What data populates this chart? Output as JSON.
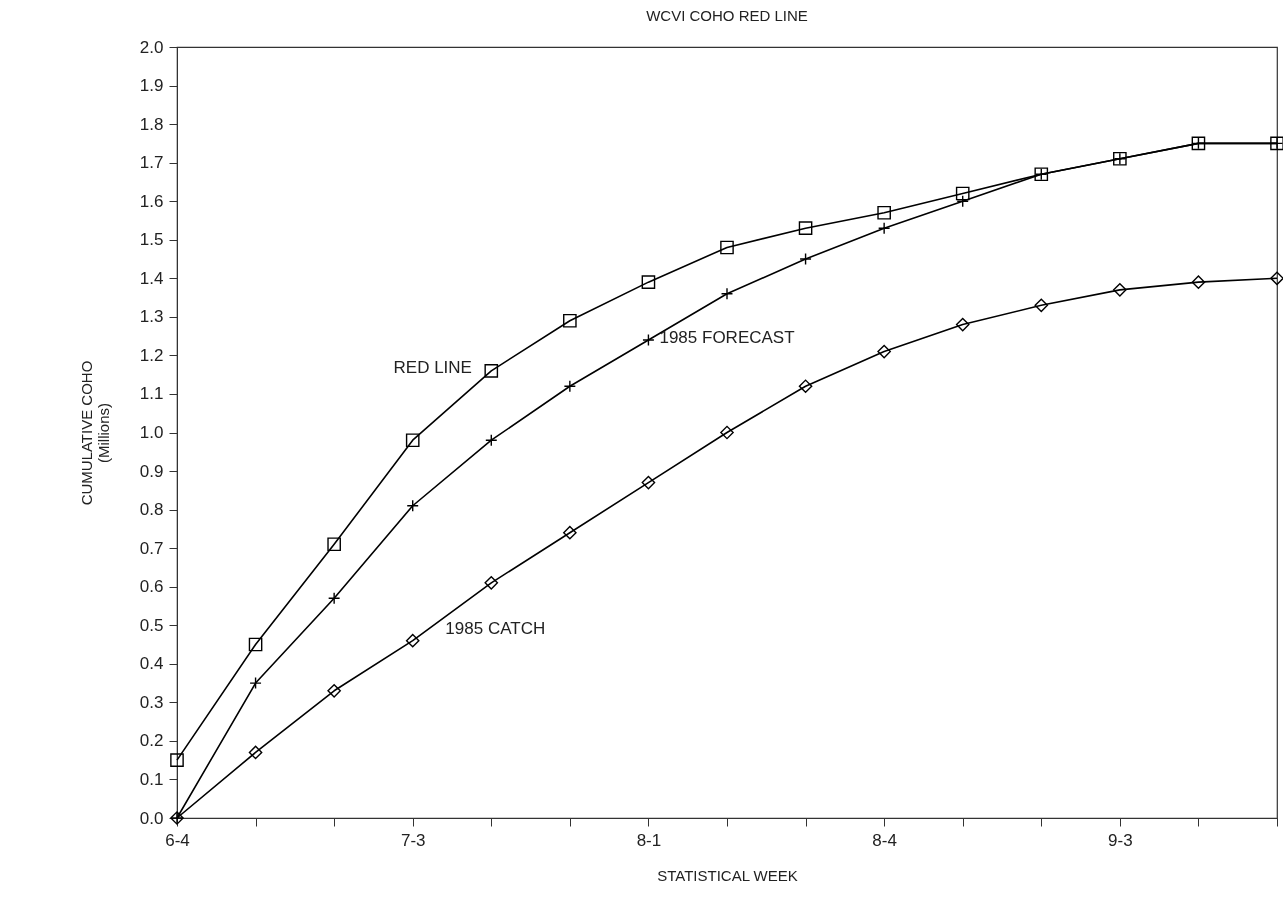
{
  "chart_data": {
    "type": "line",
    "title": "WCVI COHO RED LINE",
    "xlabel": "STATISTICAL WEEK",
    "ylabel": "CUMULATIVE COHO\n(Millions)",
    "categories": [
      "6-4",
      null,
      null,
      "7-3",
      null,
      null,
      "8-1",
      null,
      null,
      "8-4",
      null,
      null,
      "9-3",
      null,
      null
    ],
    "series": [
      {
        "name": "RED LINE",
        "color": "#000000",
        "marker": "square",
        "values": [
          0.15,
          0.45,
          0.71,
          0.98,
          1.16,
          1.29,
          1.39,
          1.48,
          1.53,
          1.57,
          1.62,
          1.67,
          1.71,
          1.75,
          1.75
        ]
      },
      {
        "name": "1985 FORECAST",
        "color": "#000000",
        "marker": "cross",
        "values": [
          0.0,
          0.35,
          0.57,
          0.81,
          0.98,
          1.12,
          1.24,
          1.36,
          1.45,
          1.53,
          1.6,
          1.67,
          1.71,
          1.75,
          1.75
        ]
      },
      {
        "name": "1985 CATCH",
        "color": "#000000",
        "marker": "diamond",
        "values": [
          0.0,
          0.17,
          0.33,
          0.46,
          0.61,
          0.74,
          0.87,
          1.0,
          1.12,
          1.21,
          1.28,
          1.33,
          1.37,
          1.39,
          1.4
        ]
      }
    ],
    "ylim": [
      0.0,
      2.0
    ],
    "yticks": [
      {
        "value": 0,
        "label": "0.0"
      },
      0.1,
      0.2,
      0.3,
      0.4,
      0.5,
      0.6,
      0.7,
      0.8,
      0.9,
      {
        "value": 1,
        "label": "1.0"
      },
      1.1,
      1.2,
      1.3,
      1.4,
      1.5,
      1.6,
      1.7,
      1.8,
      1.9,
      {
        "value": 2,
        "label": "2.0"
      }
    ],
    "grid": false,
    "line_style": "solid"
  }
}
